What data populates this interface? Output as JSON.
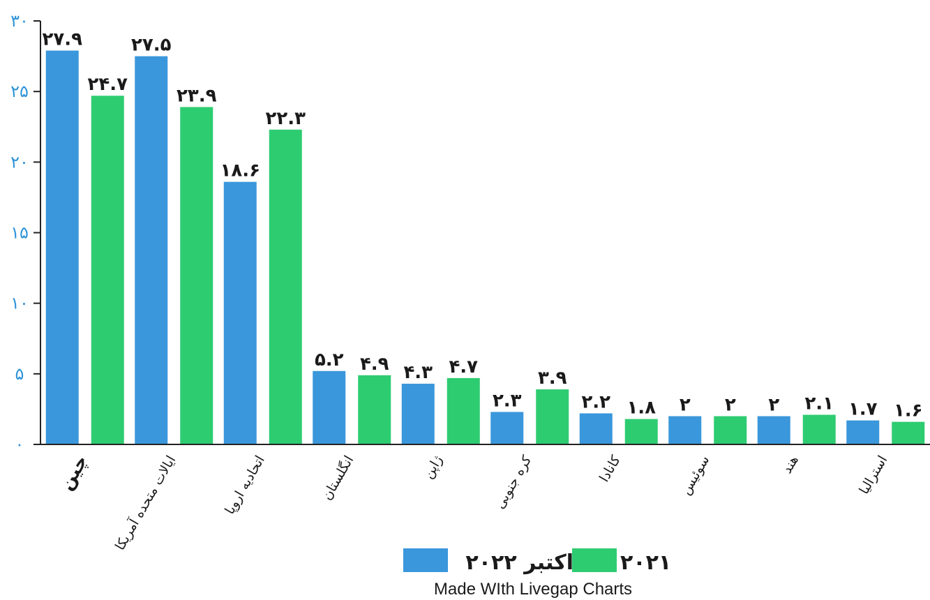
{
  "chart_data": {
    "type": "bar",
    "categories": [
      "چین",
      "ایالات متحده آمریکا",
      "اتحادیه اروپا",
      "انگلستان",
      "ژاپن",
      "کره جنوبی",
      "کانادا",
      "سوئیس",
      "هند",
      "استرالیا"
    ],
    "series": [
      {
        "name": "اکتبر ۲۰۲۲",
        "color": "#3a97dc",
        "values": [
          27.9,
          27.5,
          18.6,
          5.2,
          4.3,
          2.3,
          2.2,
          2,
          2,
          1.7
        ],
        "labels": [
          "۲۷.۹",
          "۲۷.۵",
          "۱۸.۶",
          "۵.۲",
          "۴.۳",
          "۲.۳",
          "۲.۲",
          "۲",
          "۲",
          "۱.۷"
        ]
      },
      {
        "name": "۲۰۲۱",
        "color": "#2ecc71",
        "values": [
          24.7,
          23.9,
          22.3,
          4.9,
          4.7,
          3.9,
          1.8,
          2,
          2.1,
          1.6
        ],
        "labels": [
          "۲۴.۷",
          "۲۳.۹",
          "۲۲.۳",
          "۴.۹",
          "۴.۷",
          "۳.۹",
          "۱.۸",
          "۲",
          "۲.۱",
          "۱.۶"
        ]
      }
    ],
    "ylim": [
      0,
      30
    ],
    "yticks": [
      0,
      5,
      10,
      15,
      20,
      25,
      30
    ],
    "ytick_labels": [
      "۰",
      "۵",
      "۱۰",
      "۱۵",
      "۲۰",
      "۲۵",
      "۳۰"
    ],
    "grid": false,
    "legend_position": "bottom-center"
  },
  "footer": "Made WIth Livegap Charts"
}
